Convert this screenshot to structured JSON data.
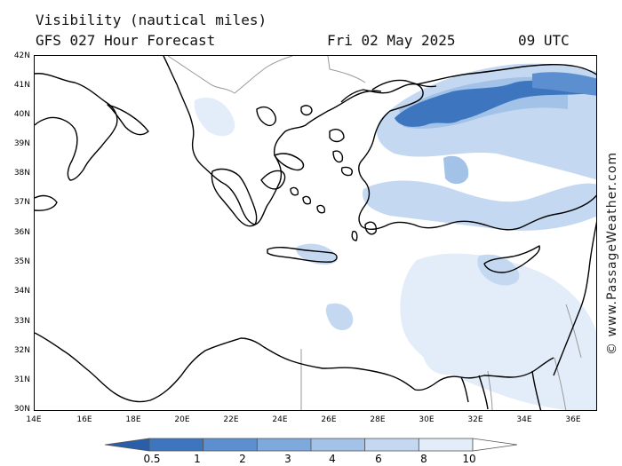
{
  "header": {
    "title": "Visibility (nautical miles)",
    "model": "GFS 027 Hour Forecast",
    "date": "Fri 02 May 2025",
    "time": "09 UTC"
  },
  "credit": "© www.PassageWeather.com",
  "axes": {
    "lat_labels": [
      "42N",
      "41N",
      "40N",
      "39N",
      "38N",
      "37N",
      "36N",
      "35N",
      "34N",
      "33N",
      "32N",
      "31N",
      "30N"
    ],
    "lon_labels": [
      "14E",
      "16E",
      "18E",
      "20E",
      "22E",
      "24E",
      "26E",
      "28E",
      "30E",
      "32E",
      "34E",
      "36E"
    ]
  },
  "legend": {
    "labels": [
      "0.5",
      "1",
      "2",
      "3",
      "4",
      "6",
      "8",
      "10"
    ],
    "colors": [
      "#2a5ea8",
      "#3d76bf",
      "#5b8fcf",
      "#7ea9dc",
      "#a2c2e8",
      "#c4d9f1",
      "#e3edf9",
      "#ffffff"
    ]
  },
  "colors": {
    "coast": "#000000",
    "border": "#999999",
    "reduced_vis_dark": "#3d76bf",
    "reduced_vis_light": "#a2c2e8"
  }
}
